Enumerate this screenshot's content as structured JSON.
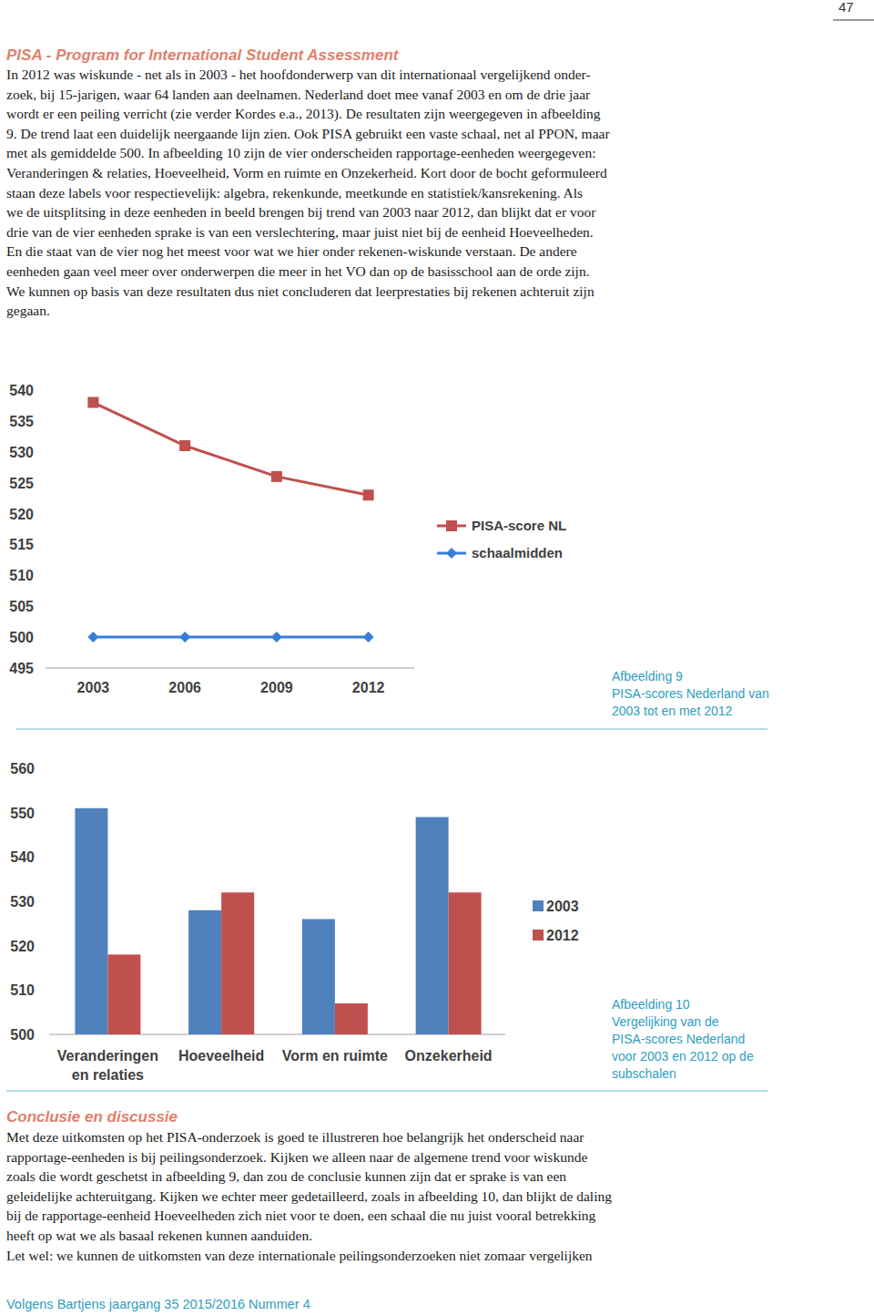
{
  "page_number": "47",
  "section": {
    "title": "PISA - Program for International Student Assessment",
    "lines": [
      "In 2012 was wiskunde - net als in 2003 - het hoofdonderwerp van dit internationaal vergelijkend onder-",
      "zoek, bij 15-jarigen, waar 64 landen aan deelnamen. Nederland doet mee vanaf 2003 en om de drie jaar",
      "wordt er een peiling verricht (zie verder Kordes e.a., 2013). De resultaten zijn weergegeven in afbeelding",
      "9. De trend laat een duidelijk neergaande lijn zien. Ook PISA gebruikt een vaste schaal, net al PPON, maar",
      "met als gemiddelde 500. In afbeelding 10 zijn de vier onderscheiden rapportage-eenheden weergegeven:",
      "Veranderingen & relaties, Hoeveelheid, Vorm en ruimte en Onzekerheid. Kort door de bocht geformuleerd",
      "staan deze labels voor respectievelijk: algebra, rekenkunde, meetkunde en statistiek/kansrekening. Als",
      "we de uitsplitsing in deze eenheden in beeld brengen bij trend van 2003 naar 2012, dan blijkt dat er voor",
      "drie van de vier eenheden sprake is van een verslechtering, maar juist niet bij de eenheid Hoeveelheden.",
      "En die staat van de vier nog het meest voor wat we hier onder rekenen-wiskunde verstaan. De andere",
      "eenheden gaan veel meer over onderwerpen die meer in het VO dan op de basisschool aan de orde zijn.",
      "We kunnen op basis van deze resultaten dus niet concluderen dat leerprestaties bij rekenen achteruit zijn",
      "gegaan."
    ]
  },
  "chart_data": [
    {
      "type": "line",
      "categories": [
        "2003",
        "2006",
        "2009",
        "2012"
      ],
      "series": [
        {
          "name": "PISA-score NL",
          "color": "#c0504d",
          "marker": "square",
          "values": [
            538,
            531,
            526,
            523
          ]
        },
        {
          "name": "schaalmidden",
          "color": "#3a7dd8",
          "marker": "diamond",
          "values": [
            500,
            500,
            500,
            500
          ]
        }
      ],
      "ylim": [
        495,
        540
      ],
      "yticks": [
        495,
        500,
        505,
        510,
        515,
        520,
        525,
        530,
        535,
        540
      ],
      "grid": false,
      "legend": "right"
    },
    {
      "type": "bar",
      "categories": [
        "Veranderingen en relaties",
        "Hoeveelheid",
        "Vorm en ruimte",
        "Onzekerheid"
      ],
      "series": [
        {
          "name": "2003",
          "color": "#4f81bd",
          "values": [
            551,
            528,
            526,
            549
          ]
        },
        {
          "name": "2012",
          "color": "#c0504d",
          "values": [
            518,
            532,
            507,
            532
          ]
        }
      ],
      "ylim": [
        500,
        560
      ],
      "yticks": [
        500,
        510,
        520,
        530,
        540,
        550,
        560
      ],
      "grid": false,
      "legend": "right"
    }
  ],
  "captions": [
    [
      "Afbeelding 9",
      "PISA-scores Nederland van",
      "2003 tot en met 2012"
    ],
    [
      "Afbeelding 10",
      "Vergelijking van de",
      "PISA-scores Nederland",
      "voor 2003 en 2012 op de",
      "subschalen"
    ]
  ],
  "conclusion": {
    "title": "Conclusie en discussie",
    "lines": [
      "Met deze uitkomsten op het PISA-onderzoek is goed te illustreren hoe belangrijk het onderscheid naar",
      "rapportage-eenheden is bij peilingsonderzoek. Kijken we alleen naar de algemene trend voor wiskunde",
      "zoals die wordt geschetst in afbeelding 9, dan zou de conclusie kunnen zijn dat er sprake is van een",
      "geleidelijke achteruitgang. Kijken we echter meer gedetailleerd, zoals in afbeelding 10, dan blijkt de daling",
      "bij de rapportage-eenheid Hoeveelheden zich niet voor te doen, een schaal die nu juist vooral betrekking",
      "heeft op wat we als basaal rekenen kunnen aanduiden.",
      "Let wel: we kunnen de uitkomsten van deze internationale peilingsonderzoeken niet zomaar vergelijken"
    ]
  },
  "footer": "Volgens Bartjens jaargang 35 2015/2016 Nummer 4"
}
